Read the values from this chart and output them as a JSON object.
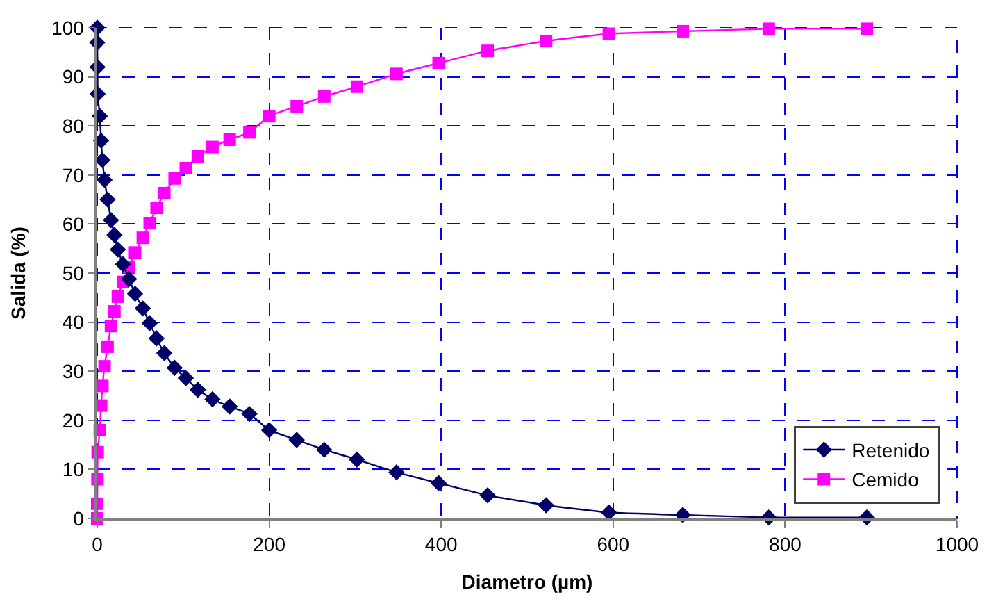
{
  "chart_data": {
    "type": "line",
    "xlabel": "Diametro (µm)",
    "ylabel": "Salida (%)",
    "xlim": [
      0,
      1000
    ],
    "xticks": [
      0,
      200,
      400,
      600,
      800,
      1000
    ],
    "ylim": [
      0,
      100
    ],
    "yticks": [
      0,
      10,
      20,
      30,
      40,
      50,
      60,
      70,
      80,
      90,
      100
    ],
    "grid": true,
    "legend": "bottom right",
    "line_style": "solid",
    "x": [
      0,
      0,
      0.3,
      0.5,
      3,
      4.5,
      6,
      8.5,
      12,
      16,
      20,
      24,
      30,
      37,
      44,
      53,
      61,
      69,
      78,
      90,
      103,
      117,
      134,
      154,
      177,
      200,
      232,
      264,
      302,
      348,
      397,
      454,
      522,
      595,
      681,
      781,
      895
    ],
    "series": [
      {
        "name": "Retenido",
        "color": "#000066",
        "marker": "diamond",
        "values": [
          100,
          97,
          92,
          86.5,
          82,
          77,
          73,
          69,
          65,
          60.8,
          57.8,
          54.8,
          51.8,
          48.8,
          45.8,
          42.8,
          39.8,
          36.7,
          33.7,
          30.7,
          28.6,
          26.2,
          24.3,
          22.8,
          21.3,
          18,
          16,
          14,
          12,
          9.4,
          7.2,
          4.7,
          2.7,
          1.2,
          0.7,
          0.2,
          0.2
        ]
      },
      {
        "name": "Cemido",
        "color": "#ff00ff",
        "marker": "square",
        "values": [
          0,
          3,
          8,
          13.5,
          18,
          23,
          27,
          31,
          35,
          39.2,
          42.2,
          45.2,
          48.2,
          51.2,
          54.2,
          57.2,
          60.2,
          63.3,
          66.3,
          69.3,
          71.4,
          73.8,
          75.7,
          77.2,
          78.7,
          82,
          84,
          86,
          88,
          90.6,
          92.8,
          95.3,
          97.3,
          98.8,
          99.3,
          99.8,
          99.8
        ]
      }
    ]
  }
}
